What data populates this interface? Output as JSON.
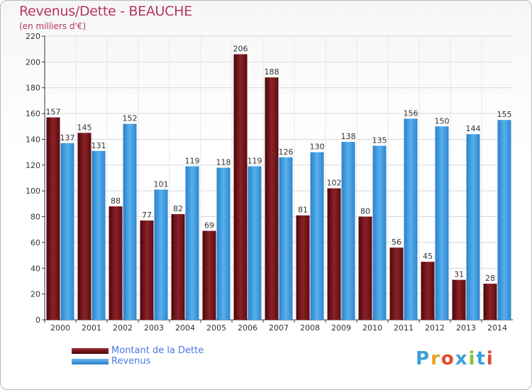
{
  "header": {
    "title": "Revenus/Dette - BEAUCHE",
    "subtitle": "(en milliers d'€)"
  },
  "legend": {
    "items": [
      {
        "label": "Montant de la Dette",
        "color": "#6e1014"
      },
      {
        "label": "Revenus",
        "color": "#3d96dc"
      }
    ]
  },
  "logo": {
    "text": "Proxiti",
    "colors": [
      "#3aa0d8",
      "#e8a020",
      "#e34a2a",
      "#3aa0d8",
      "#8bbf3a",
      "#3aa0d8",
      "#e34a2a"
    ]
  },
  "chart_data": {
    "type": "bar",
    "categories": [
      "2000",
      "2001",
      "2002",
      "2003",
      "2004",
      "2005",
      "2006",
      "2007",
      "2008",
      "2009",
      "2010",
      "2011",
      "2012",
      "2013",
      "2014"
    ],
    "series": [
      {
        "name": "Montant de la Dette",
        "color": "#6e1014",
        "values": [
          157,
          145,
          88,
          77,
          82,
          69,
          206,
          188,
          81,
          102,
          80,
          56,
          45,
          31,
          28
        ]
      },
      {
        "name": "Revenus",
        "color": "#3d96dc",
        "values": [
          137,
          131,
          152,
          101,
          119,
          118,
          119,
          126,
          130,
          138,
          135,
          156,
          150,
          144,
          155
        ]
      }
    ],
    "ylim": [
      0,
      220
    ],
    "yticks": [
      0,
      20,
      40,
      60,
      80,
      100,
      120,
      140,
      160,
      180,
      200,
      220
    ],
    "grid": true,
    "legend_position": "bottom-left"
  }
}
